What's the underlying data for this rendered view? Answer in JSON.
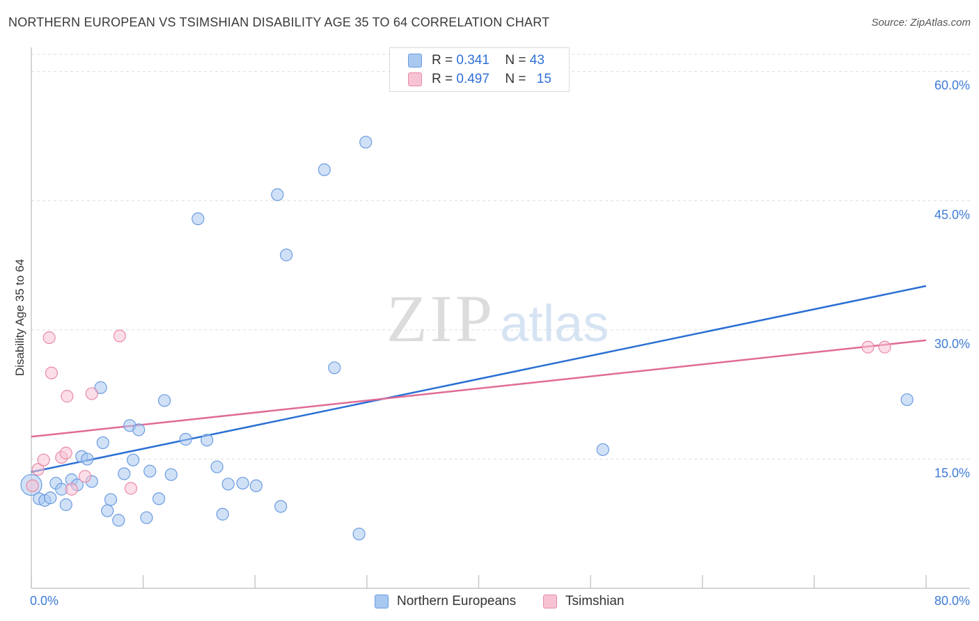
{
  "title": "NORTHERN EUROPEAN VS TSIMSHIAN DISABILITY AGE 35 TO 64 CORRELATION CHART",
  "source": "Source: ZipAtlas.com",
  "watermark": {
    "zip": "ZIP",
    "atlas": "atlas"
  },
  "legend": {
    "r_label": "R =",
    "n_label": "N =",
    "rows": [
      {
        "r": "0.341",
        "n": "43",
        "color": "#a9c8f0",
        "border": "#6a9be0"
      },
      {
        "r": "0.497",
        "n": "15",
        "color": "#f7c3d3",
        "border": "#e88aa9"
      }
    ]
  },
  "bottom_legend": [
    {
      "label": "Northern Europeans",
      "color": "#a9c8f0",
      "border": "#6a9be0"
    },
    {
      "label": "Tsimshian",
      "color": "#f7c3d3",
      "border": "#e88aa9"
    }
  ],
  "chart_data": {
    "type": "scatter",
    "title": "NORTHERN EUROPEAN VS TSIMSHIAN DISABILITY AGE 35 TO 64 CORRELATION CHART",
    "xlabel": "",
    "ylabel": "Disability Age 35 to 64",
    "xlim": [
      0,
      80
    ],
    "ylim": [
      0,
      62
    ],
    "x_tick_labels": [
      "0.0%",
      "80.0%"
    ],
    "y_ticks": [
      15,
      30,
      45,
      60
    ],
    "y_tick_labels": [
      "15.0%",
      "30.0%",
      "45.0%",
      "60.0%"
    ],
    "grid": true,
    "series": [
      {
        "name": "Northern Europeans",
        "color": "#a9c8f0",
        "stroke": "#6a9be0",
        "line_color": "#2a6fd4",
        "trend": [
          [
            0,
            13.5
          ],
          [
            80,
            35.1
          ]
        ],
        "points": [
          [
            0.0,
            12.0
          ],
          [
            0.7,
            10.4
          ],
          [
            1.2,
            10.2
          ],
          [
            1.7,
            10.5
          ],
          [
            2.2,
            12.2
          ],
          [
            2.7,
            11.5
          ],
          [
            3.1,
            9.7
          ],
          [
            3.6,
            12.6
          ],
          [
            4.1,
            12.0
          ],
          [
            4.5,
            15.3
          ],
          [
            5.0,
            15.0
          ],
          [
            5.4,
            12.4
          ],
          [
            6.2,
            23.3
          ],
          [
            6.4,
            16.9
          ],
          [
            6.8,
            9.0
          ],
          [
            7.1,
            10.3
          ],
          [
            7.8,
            7.9
          ],
          [
            8.3,
            13.3
          ],
          [
            8.8,
            18.9
          ],
          [
            9.1,
            14.9
          ],
          [
            9.6,
            18.4
          ],
          [
            10.3,
            8.2
          ],
          [
            10.6,
            13.6
          ],
          [
            11.4,
            10.4
          ],
          [
            11.9,
            21.8
          ],
          [
            12.5,
            13.2
          ],
          [
            13.8,
            17.3
          ],
          [
            14.9,
            42.9
          ],
          [
            15.7,
            17.2
          ],
          [
            16.6,
            14.1
          ],
          [
            17.1,
            8.6
          ],
          [
            17.6,
            12.1
          ],
          [
            18.9,
            12.2
          ],
          [
            20.1,
            11.9
          ],
          [
            22.0,
            45.7
          ],
          [
            22.3,
            9.5
          ],
          [
            22.8,
            38.7
          ],
          [
            26.2,
            48.6
          ],
          [
            27.1,
            25.6
          ],
          [
            29.3,
            6.3
          ],
          [
            29.9,
            51.8
          ],
          [
            51.1,
            16.1
          ],
          [
            78.3,
            21.9
          ]
        ]
      },
      {
        "name": "Tsimshian",
        "color": "#f7c3d3",
        "stroke": "#e88aa9",
        "line_color": "#e06b97",
        "trend": [
          [
            0,
            17.6
          ],
          [
            80,
            28.8
          ]
        ],
        "points": [
          [
            0.1,
            11.9
          ],
          [
            0.6,
            13.8
          ],
          [
            1.1,
            14.9
          ],
          [
            1.6,
            29.1
          ],
          [
            1.8,
            25.0
          ],
          [
            2.7,
            15.2
          ],
          [
            3.1,
            15.7
          ],
          [
            3.2,
            22.3
          ],
          [
            3.6,
            11.5
          ],
          [
            4.8,
            13.0
          ],
          [
            5.4,
            22.6
          ],
          [
            7.9,
            29.3
          ],
          [
            8.9,
            11.6
          ],
          [
            74.8,
            28.0
          ],
          [
            76.3,
            28.0
          ]
        ]
      }
    ]
  }
}
